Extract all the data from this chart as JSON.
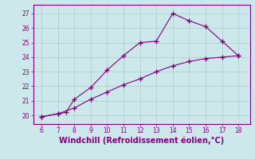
{
  "line1_x": [
    6,
    7,
    7.5,
    8,
    9,
    10,
    11,
    12,
    13,
    14,
    15,
    16,
    17,
    18
  ],
  "line1_y": [
    19.9,
    20.1,
    20.2,
    21.1,
    21.9,
    23.1,
    24.1,
    25.0,
    25.1,
    27.0,
    26.5,
    26.1,
    25.1,
    24.1
  ],
  "line2_x": [
    6,
    7,
    8,
    9,
    10,
    11,
    12,
    13,
    14,
    15,
    16,
    17,
    18
  ],
  "line2_y": [
    19.9,
    20.1,
    20.5,
    21.1,
    21.6,
    22.1,
    22.5,
    23.0,
    23.4,
    23.7,
    23.9,
    24.0,
    24.1
  ],
  "line_color": "#800080",
  "marker": "+",
  "markersize": 4,
  "linewidth": 0.8,
  "xlabel": "Windchill (Refroidissement éolien,°C)",
  "xlabel_color": "#800080",
  "xlabel_fontsize": 7,
  "ylabel_ticks": [
    20,
    21,
    22,
    23,
    24,
    25,
    26,
    27
  ],
  "xticks": [
    6,
    7,
    8,
    9,
    10,
    11,
    12,
    13,
    14,
    15,
    16,
    17,
    18
  ],
  "ylim": [
    19.4,
    27.6
  ],
  "xlim": [
    5.5,
    18.7
  ],
  "bg_color": "#cce8ea",
  "grid_color": "#b0c8ca",
  "tick_color": "#800080",
  "spine_color": "#800080"
}
